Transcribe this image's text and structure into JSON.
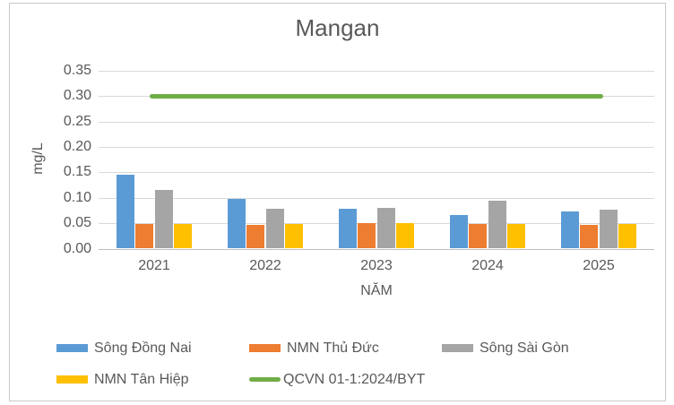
{
  "chart_data": {
    "type": "bar",
    "title": "Mangan",
    "xlabel": "NĂM",
    "ylabel": "mg/L",
    "categories": [
      "2021",
      "2022",
      "2023",
      "2024",
      "2025"
    ],
    "series": [
      {
        "name": "Sông Đồng Nai",
        "type": "bar",
        "color": "#5b9bd5",
        "values": [
          0.145,
          0.097,
          0.079,
          0.066,
          0.073
        ]
      },
      {
        "name": "NMN Thủ Đức",
        "type": "bar",
        "color": "#ed7d31",
        "values": [
          0.049,
          0.047,
          0.05,
          0.048,
          0.046
        ]
      },
      {
        "name": "Sông Sài Gòn",
        "type": "bar",
        "color": "#a5a5a5",
        "values": [
          0.115,
          0.078,
          0.08,
          0.094,
          0.077
        ]
      },
      {
        "name": "NMN Tân Hiệp",
        "type": "bar",
        "color": "#ffc000",
        "values": [
          0.049,
          0.048,
          0.051,
          0.049,
          0.048
        ]
      },
      {
        "name": "QCVN 01-1:2024/BYT",
        "type": "line",
        "color": "#70ad47",
        "values": [
          0.3,
          0.3,
          0.3,
          0.3,
          0.3
        ]
      }
    ],
    "ylim": [
      0,
      0.35
    ],
    "ytick_labels": [
      "0.00",
      "0.05",
      "0.10",
      "0.15",
      "0.20",
      "0.25",
      "0.30",
      "0.35"
    ],
    "grid": true,
    "legend_position": "bottom"
  },
  "colors": {
    "text": "#595959",
    "gridline": "#d9d9d9",
    "axis_line": "#bfbfbf",
    "frame_border": "#c9c9c9",
    "background": "#ffffff"
  }
}
